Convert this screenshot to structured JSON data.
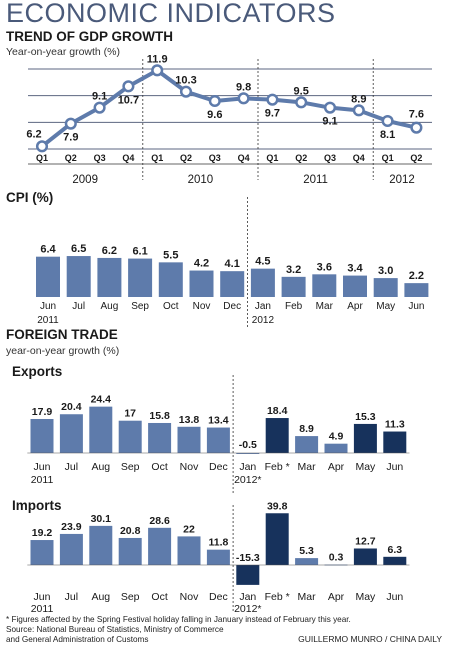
{
  "title": "ECONOMIC INDICATORS",
  "colors": {
    "bar": "#5e7bab",
    "dark_bar": "#17325c",
    "line": "#5e7bab",
    "title": "#4a5a7a"
  },
  "gdp": {
    "title": "TREND OF GDP GROWTH",
    "subtitle": "Year-on-year growth (%)",
    "chart_data": {
      "type": "line",
      "categories": [
        "Q1",
        "Q2",
        "Q3",
        "Q4",
        "Q1",
        "Q2",
        "Q3",
        "Q4",
        "Q1",
        "Q2",
        "Q3",
        "Q4",
        "Q1",
        "Q2"
      ],
      "values": [
        6.2,
        7.9,
        9.1,
        10.7,
        11.9,
        10.3,
        9.6,
        9.8,
        9.7,
        9.5,
        9.1,
        8.9,
        8.1,
        7.6
      ],
      "value_labels": [
        "6.2",
        "7.9",
        "9.1",
        "10.7",
        "11.9",
        "10.3",
        "9.6",
        "9.8",
        "9.7",
        "9.5",
        "9.1",
        "8.9",
        "8.1",
        "7.6"
      ],
      "years": [
        "2009",
        "2010",
        "2011",
        "2012"
      ],
      "ylim": [
        6,
        12
      ],
      "grid": true
    }
  },
  "cpi": {
    "title": "CPI (%)",
    "chart_data": {
      "type": "bar",
      "categories": [
        "Jun",
        "Jul",
        "Aug",
        "Sep",
        "Oct",
        "Nov",
        "Dec",
        "Jan",
        "Feb",
        "Mar",
        "Apr",
        "May",
        "Jun"
      ],
      "values": [
        6.4,
        6.5,
        6.2,
        6.1,
        5.5,
        4.2,
        4.1,
        4.5,
        3.2,
        3.6,
        3.4,
        3.0,
        2.2
      ],
      "value_labels": [
        "6.4",
        "6.5",
        "6.2",
        "6.1",
        "5.5",
        "4.2",
        "4.1",
        "4.5",
        "3.2",
        "3.6",
        "3.4",
        "3.0",
        "2.2"
      ],
      "year_start": "2011",
      "year_split": "2012",
      "ylim": [
        0,
        7
      ]
    }
  },
  "trade": {
    "title": "FOREIGN TRADE",
    "subtitle": "year-on-year growth (%)",
    "exports": {
      "title": "Exports",
      "chart_data": {
        "type": "bar",
        "categories": [
          "Jun",
          "Jul",
          "Aug",
          "Sep",
          "Oct",
          "Nov",
          "Dec",
          "Jan",
          "Feb *",
          "Mar",
          "Apr",
          "May",
          "Jun"
        ],
        "values": [
          17.9,
          20.4,
          24.4,
          17,
          15.8,
          13.8,
          13.4,
          -0.5,
          18.4,
          8.9,
          4.9,
          15.3,
          11.3
        ],
        "value_labels": [
          "17.9",
          "20.4",
          "24.4",
          "17",
          "15.8",
          "13.8",
          "13.4",
          "-0.5",
          "18.4",
          "8.9",
          "4.9",
          "15.3",
          "11.3"
        ],
        "year_start": "2011",
        "year_split": "2012*",
        "ylim": [
          -2,
          25
        ]
      }
    },
    "imports": {
      "title": "Imports",
      "chart_data": {
        "type": "bar",
        "categories": [
          "Jun",
          "Jul",
          "Aug",
          "Sep",
          "Oct",
          "Nov",
          "Dec",
          "Jan",
          "Feb *",
          "Mar",
          "Apr",
          "May",
          "Jun"
        ],
        "values": [
          19.2,
          23.9,
          30.1,
          20.8,
          28.6,
          22,
          11.8,
          -15.3,
          39.8,
          5.3,
          0.3,
          12.7,
          6.3
        ],
        "value_labels": [
          "19.2",
          "23.9",
          "30.1",
          "20.8",
          "28.6",
          "22",
          "11.8",
          "-15.3",
          "39.8",
          "5.3",
          "0.3",
          "12.7",
          "6.3"
        ],
        "year_start": "2011",
        "year_split": "2012*",
        "ylim": [
          -16,
          40
        ]
      }
    }
  },
  "footnote": "* Figures affected by the Spring Festival holiday falling in January instead of February this year.",
  "source_line1": "Source: National Bureau of Statistics, Ministry of Commerce",
  "source_line2": "and General Administration of Customs",
  "credit": "GUILLERMO MUNRO / CHINA DAILY"
}
